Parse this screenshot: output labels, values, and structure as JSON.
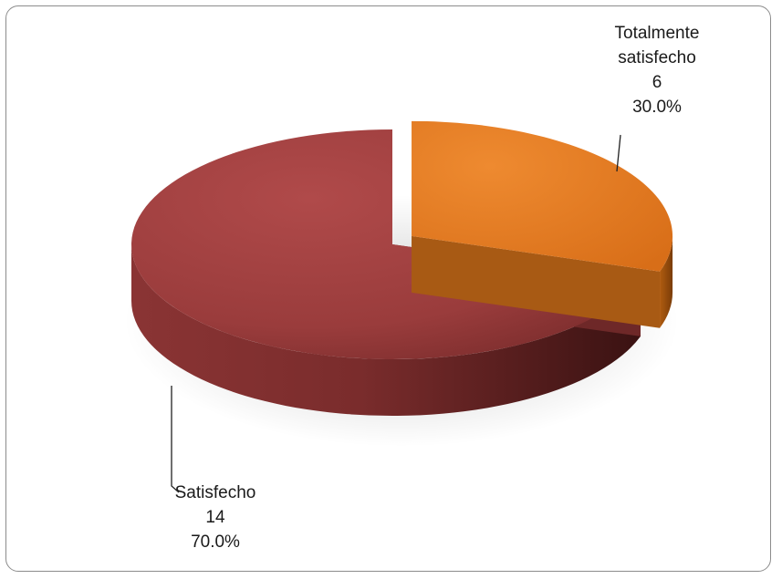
{
  "chart_data": {
    "type": "pie",
    "title": "",
    "start_angle_deg": 0,
    "slices": [
      {
        "name_lines": [
          "Totalmente",
          "satisfecho"
        ],
        "count": "6",
        "percent_label": "30.0%",
        "value": 6,
        "percent": 30.0,
        "color": "#e07820",
        "side_color": "#a85a14",
        "exploded": true
      },
      {
        "name_lines": [
          "Satisfecho"
        ],
        "count": "14",
        "percent_label": "70.0%",
        "value": 14,
        "percent": 70.0,
        "color": "#a04040",
        "side_color": "#6e2828",
        "exploded": false
      }
    ],
    "legend": "none",
    "data_labels": "outside with leader lines"
  }
}
